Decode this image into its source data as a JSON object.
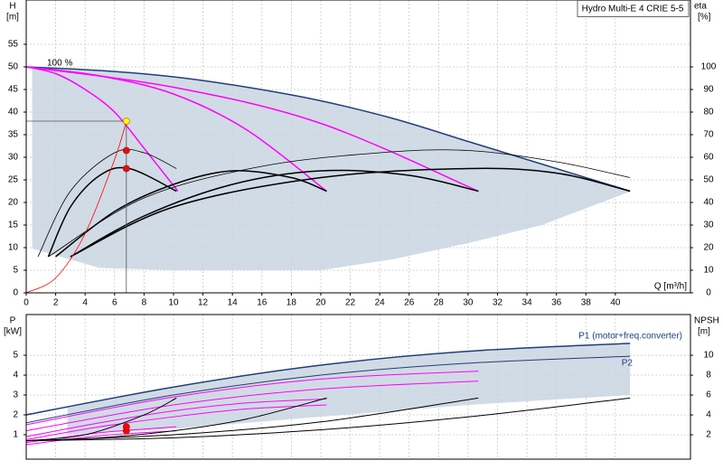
{
  "chart_data": [
    {
      "type": "line",
      "title": "Hydro Multi-E 4 CRIE 5-5",
      "y_label": "H",
      "y_unit": "[m]",
      "y2_label": "eta",
      "y2_unit": "[%]",
      "x_label": "Q [m³/h]",
      "annotations": [
        "100 %"
      ],
      "xlim": [
        0,
        45.1
      ],
      "ylim": [
        0,
        64.8
      ],
      "y2lim": [
        0,
        129.6
      ],
      "xticks": [
        0,
        2,
        4,
        6,
        8,
        10,
        12,
        14,
        16,
        18,
        20,
        22,
        24,
        26,
        28,
        30,
        32,
        34,
        36,
        38,
        40
      ],
      "yticks": [
        0,
        5,
        10,
        15,
        20,
        25,
        30,
        35,
        40,
        45,
        50,
        55
      ],
      "y2ticks": [
        0,
        10,
        20,
        30,
        40,
        50,
        60,
        70,
        80,
        90,
        100
      ],
      "xtick_labels": true,
      "grid": true,
      "series": [
        {
          "style": "area",
          "color": "#c9d5e1",
          "x": [
            0.4,
            5,
            10,
            15,
            20,
            25,
            30,
            35,
            41
          ],
          "values": [
            49.9,
            49.2,
            47.8,
            45.5,
            42.5,
            38.5,
            33.5,
            28.5,
            22.5
          ],
          "lower": [
            9.8,
            5.5,
            5,
            5,
            5,
            7.5,
            11,
            15,
            22.4
          ]
        },
        {
          "style": "line",
          "color": "#1f3f7a",
          "width": 1.5,
          "x": [
            0,
            5,
            10,
            15,
            20,
            25,
            30,
            35,
            41
          ],
          "values": [
            50,
            49.2,
            47.8,
            45.5,
            42.5,
            38.5,
            33.5,
            28.5,
            22.5
          ]
        },
        {
          "style": "line",
          "color": "#ff00ff",
          "width": 1.5,
          "x": [
            0,
            10,
            20,
            30.7
          ],
          "values": [
            50,
            45.5,
            37.5,
            22.5
          ]
        },
        {
          "style": "line",
          "color": "#ff00ff",
          "width": 1.5,
          "x": [
            0,
            5,
            10,
            15,
            20.4
          ],
          "values": [
            50,
            48,
            44,
            36,
            22.5
          ]
        },
        {
          "style": "line",
          "color": "#ff00ff",
          "width": 1.5,
          "x": [
            0,
            2,
            4,
            6,
            8,
            10.3
          ],
          "values": [
            50,
            48.5,
            45,
            40,
            32,
            22.5
          ]
        },
        {
          "style": "line",
          "color": "#000000",
          "width": 0.8,
          "axis": "y2",
          "x": [
            0.8,
            3,
            6,
            8,
            10.2
          ],
          "values": [
            16,
            45,
            62,
            62,
            55
          ]
        },
        {
          "style": "line",
          "color": "#000000",
          "width": 0.8,
          "axis": "y2",
          "x": [
            1.5,
            8,
            16,
            24,
            30,
            36,
            41
          ],
          "values": [
            16,
            42,
            56,
            62,
            63,
            58,
            51
          ]
        },
        {
          "style": "line",
          "color": "#000000",
          "width": 1.5,
          "axis": "y2",
          "x": [
            1.5,
            3,
            5,
            7,
            10.2
          ],
          "values": [
            16,
            38,
            52,
            55,
            45
          ]
        },
        {
          "style": "line",
          "color": "#000000",
          "width": 1.5,
          "axis": "y2",
          "x": [
            2,
            6,
            10,
            14,
            18,
            20.4
          ],
          "values": [
            16,
            36,
            48,
            54,
            51,
            45
          ]
        },
        {
          "style": "line",
          "color": "#000000",
          "width": 1.5,
          "axis": "y2",
          "x": [
            3,
            8,
            14,
            20,
            26,
            30.7
          ],
          "values": [
            16,
            34,
            48,
            54,
            52,
            45
          ]
        },
        {
          "style": "line",
          "color": "#000000",
          "width": 1.5,
          "axis": "y2",
          "x": [
            3,
            10,
            20,
            30,
            36,
            41
          ],
          "values": [
            16,
            38,
            51,
            55,
            53,
            45
          ]
        },
        {
          "style": "line",
          "color": "#ff0000",
          "width": 0.8,
          "x": [
            0,
            2,
            4,
            6,
            6.8
          ],
          "values": [
            0,
            3.3,
            13.1,
            29.5,
            38
          ]
        },
        {
          "style": "points",
          "color": "#ff0000",
          "axis": "y2",
          "x": [
            6.8,
            6.8
          ],
          "values": [
            63,
            55
          ]
        },
        {
          "style": "points",
          "color": "#ffff00",
          "crosshair": true,
          "x": [
            6.8
          ],
          "values": [
            38
          ]
        }
      ]
    },
    {
      "type": "line",
      "y_label": "P",
      "y_unit": "[kW]",
      "y2_label": "NPSH",
      "y2_unit": "[m]",
      "annotations": [
        "P1 (motor+freq.converter)",
        "P2"
      ],
      "xlim": [
        0,
        45.1
      ],
      "ylim": [
        -0.23,
        7.05
      ],
      "y2lim": [
        -0.45,
        14.1
      ],
      "xticks": [
        0,
        2,
        4,
        6,
        8,
        10,
        12,
        14,
        16,
        18,
        20,
        22,
        24,
        26,
        28,
        30,
        32,
        34,
        36,
        38,
        40
      ],
      "yticks": [
        1,
        2,
        3,
        4,
        5
      ],
      "y2ticks": [
        2,
        4,
        6,
        8,
        10
      ],
      "xtick_labels": false,
      "grid": true,
      "series": [
        {
          "style": "area",
          "color": "#c9d5e1",
          "x": [
            2.8,
            10,
            20,
            30,
            41
          ],
          "values": [
            2.35,
            3.4,
            4.5,
            5.2,
            5.6
          ],
          "lower": [
            1.0,
            1.3,
            1.9,
            2.5,
            3.0
          ]
        },
        {
          "style": "line",
          "color": "#1f3f7a",
          "width": 1.5,
          "x": [
            0,
            10,
            20,
            30,
            41
          ],
          "values": [
            2.0,
            3.4,
            4.5,
            5.2,
            5.6
          ]
        },
        {
          "style": "line",
          "color": "#1f3f7a",
          "width": 1,
          "x": [
            0,
            10,
            20,
            30,
            41
          ],
          "values": [
            1.6,
            3.0,
            4.0,
            4.6,
            4.95
          ]
        },
        {
          "style": "line",
          "color": "#ff00ff",
          "width": 1,
          "x": [
            0,
            10,
            20,
            30.7
          ],
          "values": [
            1.5,
            2.9,
            3.8,
            4.2
          ]
        },
        {
          "style": "line",
          "color": "#ff00ff",
          "width": 1,
          "x": [
            0,
            10,
            20,
            30.7
          ],
          "values": [
            1.2,
            2.5,
            3.3,
            3.7
          ]
        },
        {
          "style": "line",
          "color": "#ff00ff",
          "width": 1,
          "x": [
            0,
            5,
            10,
            15,
            20.4
          ],
          "values": [
            0.9,
            1.6,
            2.2,
            2.6,
            2.8
          ]
        },
        {
          "style": "line",
          "color": "#ff00ff",
          "width": 1,
          "x": [
            0,
            5,
            10,
            15,
            20.4
          ],
          "values": [
            0.75,
            1.4,
            1.9,
            2.3,
            2.5
          ]
        },
        {
          "style": "line",
          "color": "#ff00ff",
          "width": 1,
          "x": [
            0,
            5,
            10.2
          ],
          "values": [
            0.6,
            1.1,
            1.4
          ]
        },
        {
          "style": "line",
          "color": "#ff00ff",
          "width": 1,
          "x": [
            0,
            5,
            10.2
          ],
          "values": [
            0.5,
            0.95,
            1.2
          ]
        },
        {
          "style": "line",
          "color": "#000000",
          "width": 1,
          "axis": "y2",
          "x": [
            0,
            10,
            20,
            30,
            41
          ],
          "values": [
            1.4,
            1.7,
            2.5,
            3.8,
            5.7
          ]
        },
        {
          "style": "line",
          "color": "#000000",
          "width": 1,
          "axis": "y2",
          "x": [
            0,
            10,
            20,
            30.7
          ],
          "values": [
            1.4,
            2.0,
            3.3,
            5.7
          ]
        },
        {
          "style": "line",
          "color": "#000000",
          "width": 1,
          "axis": "y2",
          "x": [
            0,
            5,
            10,
            15,
            20.4
          ],
          "values": [
            1.4,
            1.7,
            2.4,
            3.6,
            5.7
          ]
        },
        {
          "style": "line",
          "color": "#000000",
          "width": 1,
          "axis": "y2",
          "x": [
            0,
            4,
            8,
            10.2
          ],
          "values": [
            1.4,
            2.0,
            4.0,
            5.7
          ]
        },
        {
          "style": "points",
          "color": "#ff0000",
          "x": [
            6.8,
            6.8
          ],
          "values": [
            1.2,
            1.4
          ]
        }
      ]
    }
  ]
}
